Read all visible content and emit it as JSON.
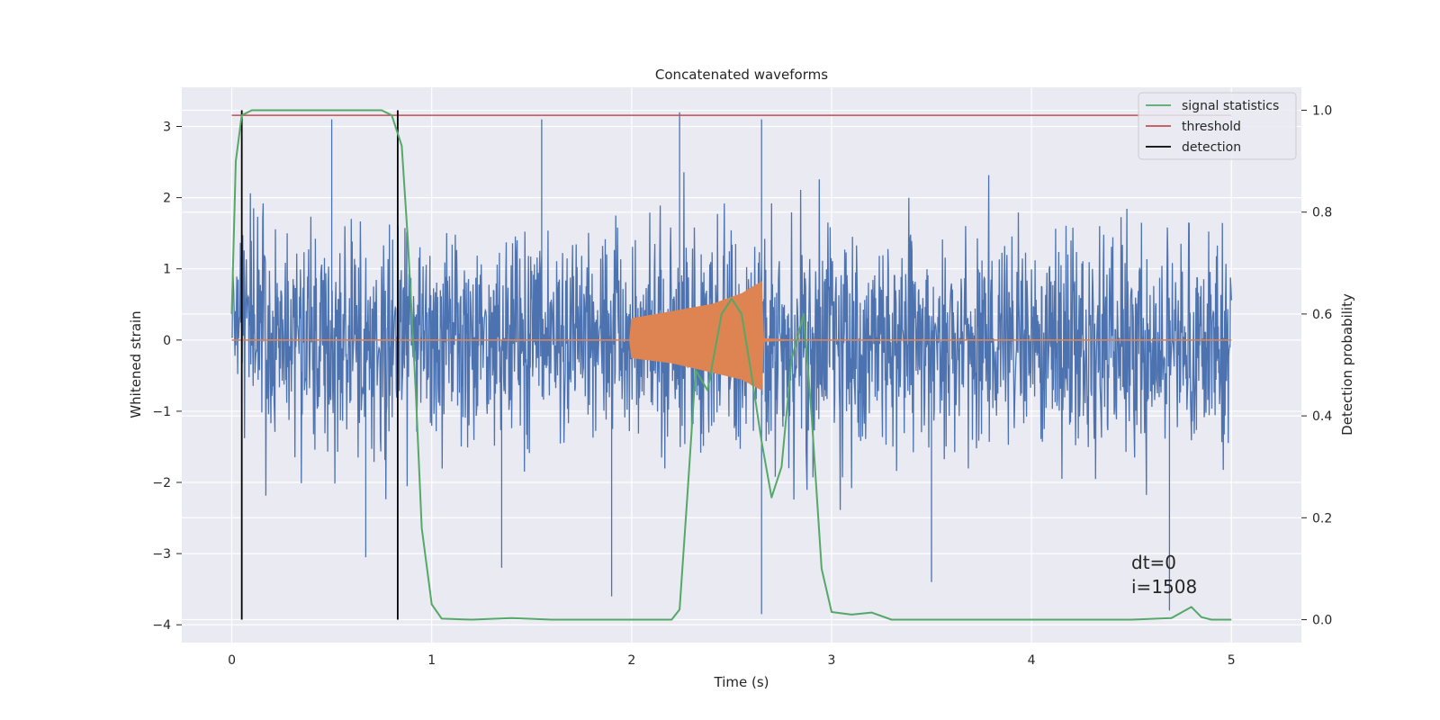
{
  "chart_data": {
    "type": "line",
    "title": "Concatenated waveforms",
    "xlabel": "Time (s)",
    "ylabel": "Whitened strain",
    "ylabel_right": "Detection probability",
    "xlim": [
      -0.25,
      5.35
    ],
    "ylim": [
      -4.25,
      3.55
    ],
    "ylim_right": [
      -0.045,
      1.045
    ],
    "x_ticks": [
      0,
      1,
      2,
      3,
      4,
      5
    ],
    "y_ticks": [
      -4,
      -3,
      -2,
      -1,
      0,
      1,
      2,
      3
    ],
    "y_ticks_right": [
      0.0,
      0.2,
      0.4,
      0.6,
      0.8,
      1.0
    ],
    "grid": true,
    "legend_position": "top-right",
    "legend": [
      "signal statistics",
      "threshold",
      "detection"
    ],
    "colors": {
      "noise": "#4c72b0",
      "waveform": "#dd8452",
      "signal_statistics": "#55a868",
      "threshold": "#c44e52",
      "detection": "#000000",
      "plot_background": "#eaeaf2",
      "grid": "#ffffff"
    },
    "series": [
      {
        "axis": "left",
        "description": "noise whitened strain, dense random samples",
        "x_range": [
          0,
          5
        ],
        "amplitude_envelope": [
          -3.9,
          3.2
        ],
        "notable_spikes": [
          [
            0.5,
            3.1
          ],
          [
            1.55,
            3.1
          ],
          [
            2.24,
            3.2
          ],
          [
            2.65,
            3.1
          ],
          [
            2.65,
            -3.85
          ],
          [
            1.9,
            -3.6
          ],
          [
            3.5,
            -3.4
          ],
          [
            4.69,
            -3.8
          ],
          [
            1.35,
            -3.2
          ],
          [
            0.67,
            -3.05
          ]
        ]
      },
      {
        "axis": "left",
        "description": "injected waveform, chirp",
        "x": [
          0.0,
          1.99,
          2.0,
          2.2,
          2.4,
          2.55,
          2.65,
          2.66,
          2.8,
          3.0,
          5.0
        ],
        "y_upper": [
          0.0,
          0.0,
          0.3,
          0.4,
          0.5,
          0.65,
          0.82,
          0.02,
          0.0,
          0.0,
          0.0
        ],
        "y_lower": [
          0.0,
          0.0,
          -0.25,
          -0.32,
          -0.45,
          -0.55,
          -0.7,
          -0.02,
          0.0,
          0.0,
          0.0
        ]
      },
      {
        "name": "signal statistics",
        "axis": "right",
        "x": [
          0.0,
          0.02,
          0.05,
          0.1,
          0.2,
          0.4,
          0.6,
          0.75,
          0.8,
          0.85,
          0.88,
          0.92,
          0.95,
          1.0,
          1.05,
          1.2,
          1.4,
          1.6,
          2.0,
          2.2,
          2.24,
          2.28,
          2.32,
          2.38,
          2.45,
          2.5,
          2.55,
          2.6,
          2.65,
          2.7,
          2.75,
          2.8,
          2.86,
          2.9,
          2.95,
          3.0,
          3.1,
          3.2,
          3.3,
          3.5,
          4.0,
          4.5,
          4.7,
          4.8,
          4.85,
          4.9,
          5.0
        ],
        "y": [
          0.6,
          0.9,
          0.99,
          1.0,
          1.0,
          1.0,
          1.0,
          1.0,
          0.99,
          0.93,
          0.75,
          0.45,
          0.18,
          0.03,
          0.002,
          0.0,
          0.003,
          0.0,
          0.0,
          0.0,
          0.02,
          0.25,
          0.49,
          0.45,
          0.6,
          0.63,
          0.6,
          0.48,
          0.35,
          0.24,
          0.3,
          0.51,
          0.6,
          0.4,
          0.1,
          0.015,
          0.01,
          0.014,
          0.0,
          0.0,
          0.0,
          0.0,
          0.003,
          0.025,
          0.005,
          0.0,
          0.0
        ]
      },
      {
        "name": "threshold",
        "axis": "right",
        "x": [
          0,
          5
        ],
        "y": [
          0.99,
          0.99
        ]
      },
      {
        "name": "detection",
        "axis": "right",
        "type": "vlines",
        "x": [
          0.05,
          0.83
        ],
        "y_range": [
          0.0,
          1.0
        ]
      }
    ],
    "annotations": [
      "dt=0",
      "i=1508"
    ]
  }
}
